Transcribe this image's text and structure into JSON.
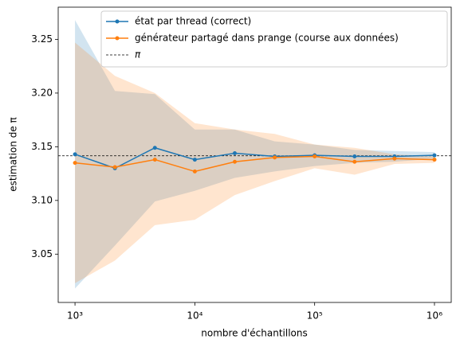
{
  "chart_data": {
    "type": "line",
    "xlabel": "nombre d'échantillons",
    "ylabel": "estimation de π",
    "xscale": "log",
    "x": [
      1000,
      2154,
      4642,
      10000,
      21544,
      46416,
      100000,
      215443,
      464159,
      1000000
    ],
    "series": [
      {
        "name": "état par thread (correct)",
        "color": "#1f77b4",
        "values": [
          3.143,
          3.13,
          3.149,
          3.138,
          3.144,
          3.141,
          3.142,
          3.141,
          3.141,
          3.142
        ],
        "upper": [
          3.268,
          3.202,
          3.199,
          3.166,
          3.166,
          3.155,
          3.152,
          3.147,
          3.146,
          3.145
        ],
        "lower": [
          3.018,
          3.058,
          3.099,
          3.109,
          3.121,
          3.127,
          3.132,
          3.135,
          3.136,
          3.139
        ]
      },
      {
        "name": "générateur partagé dans prange (course aux données)",
        "color": "#ff7f0e",
        "values": [
          3.135,
          3.131,
          3.138,
          3.127,
          3.136,
          3.14,
          3.141,
          3.136,
          3.139,
          3.138
        ],
        "upper": [
          3.247,
          3.216,
          3.2,
          3.172,
          3.166,
          3.162,
          3.152,
          3.149,
          3.143,
          3.141
        ],
        "lower": [
          3.023,
          3.044,
          3.077,
          3.082,
          3.105,
          3.118,
          3.13,
          3.124,
          3.134,
          3.135
        ]
      }
    ],
    "reference": {
      "name": "π",
      "value": 3.14159,
      "color": "#000000"
    },
    "xlim": [
      724,
      1380000
    ],
    "xticks": [
      {
        "value": 1000,
        "label": "10³"
      },
      {
        "value": 10000,
        "label": "10⁴"
      },
      {
        "value": 100000,
        "label": "10⁵"
      },
      {
        "value": 1000000,
        "label": "10⁶"
      }
    ],
    "ylim": [
      3.005,
      3.28
    ],
    "yticks": [
      3.05,
      {
        "value": 3.1,
        "label": "3.10"
      },
      3.15,
      {
        "value": 3.2,
        "label": "3.20"
      },
      3.25
    ],
    "band_opacity": 0.2,
    "legend": "upper right"
  }
}
